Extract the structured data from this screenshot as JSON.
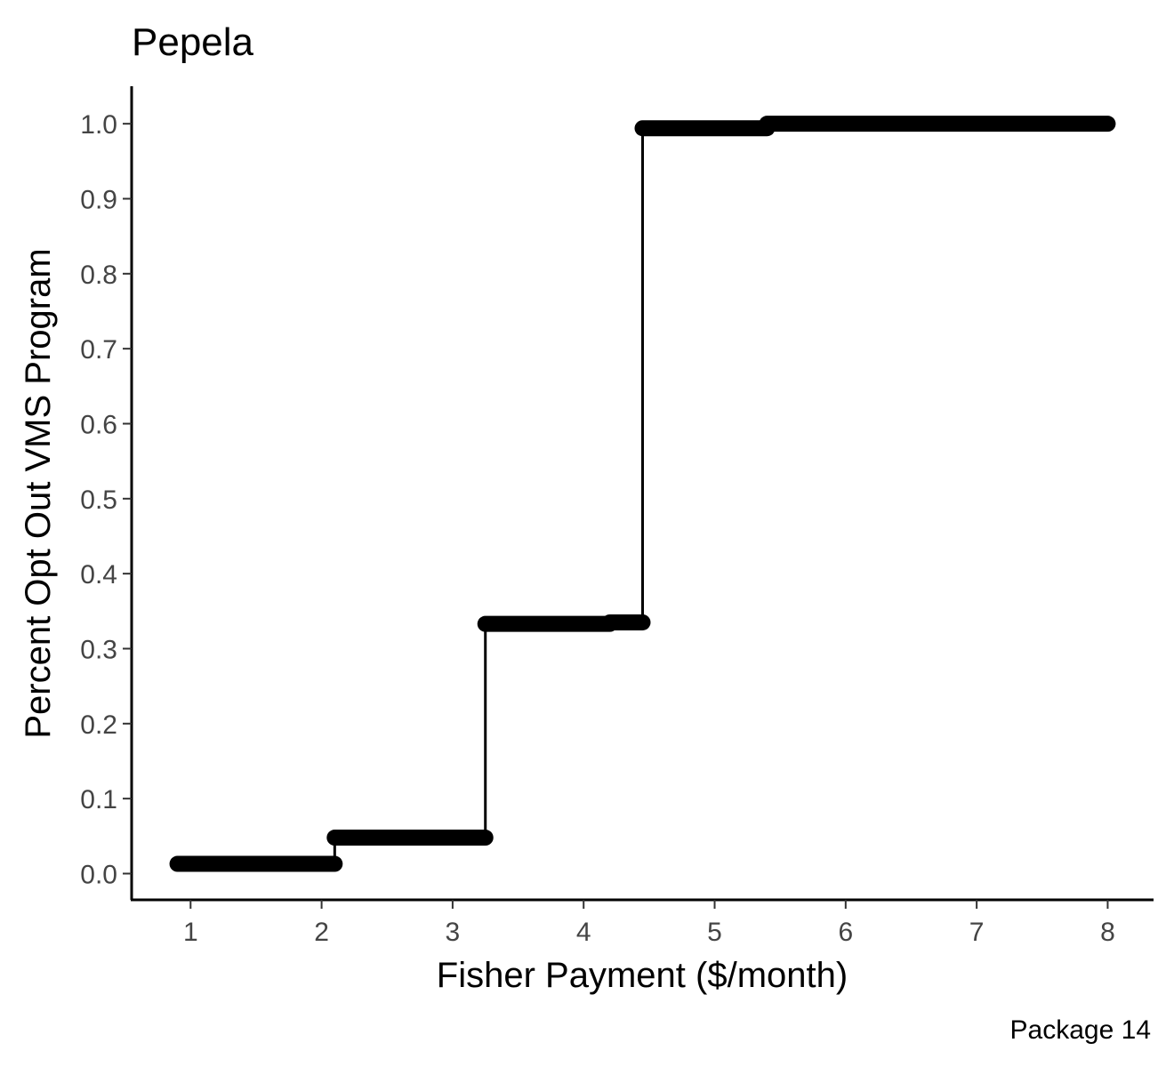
{
  "chart_data": {
    "type": "line",
    "title": "Pepela",
    "xlabel": "Fisher Payment ($/month)",
    "ylabel": "Percent Opt Out VMS Program",
    "caption": "Package 14",
    "xlim": [
      0.55,
      8.35
    ],
    "ylim": [
      -0.035,
      1.05
    ],
    "x_ticks": [
      1,
      2,
      3,
      4,
      5,
      6,
      7,
      8
    ],
    "x_tick_labels": [
      "1",
      "2",
      "3",
      "4",
      "5",
      "6",
      "7",
      "8"
    ],
    "y_ticks": [
      0.0,
      0.1,
      0.2,
      0.3,
      0.4,
      0.5,
      0.6,
      0.7,
      0.8,
      0.9,
      1.0
    ],
    "y_tick_labels": [
      "0.0",
      "0.1",
      "0.2",
      "0.3",
      "0.4",
      "0.5",
      "0.6",
      "0.7",
      "0.8",
      "0.9",
      "1.0"
    ],
    "grid": false,
    "color": "#000000",
    "step_line": {
      "x": [
        0.9,
        2.1,
        2.1,
        3.25,
        3.25,
        4.2,
        4.2,
        4.45,
        4.45,
        5.4,
        5.4,
        8.0
      ],
      "y": [
        0.013,
        0.013,
        0.048,
        0.048,
        0.333,
        0.333,
        0.335,
        0.335,
        0.994,
        0.994,
        1.0,
        1.0
      ]
    },
    "segments": [
      {
        "x_start": 0.9,
        "x_end": 2.1,
        "y": 0.013
      },
      {
        "x_start": 2.1,
        "x_end": 3.25,
        "y": 0.048
      },
      {
        "x_start": 3.25,
        "x_end": 4.2,
        "y": 0.333
      },
      {
        "x_start": 4.2,
        "x_end": 4.45,
        "y": 0.335
      },
      {
        "x_start": 4.45,
        "x_end": 5.4,
        "y": 0.994
      },
      {
        "x_start": 5.4,
        "x_end": 8.0,
        "y": 1.0
      }
    ]
  }
}
